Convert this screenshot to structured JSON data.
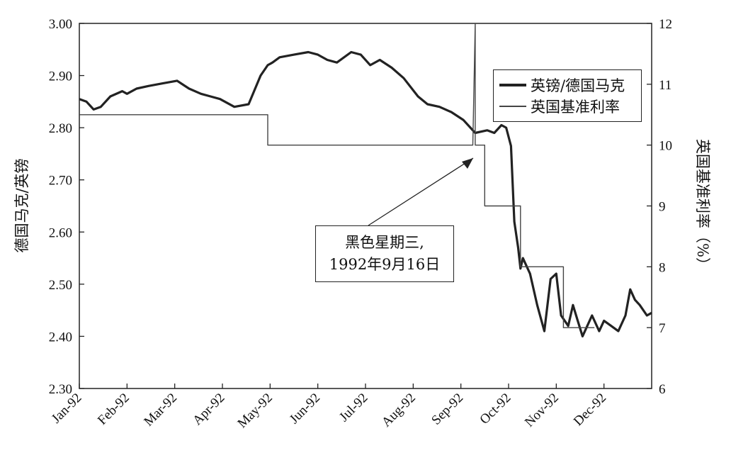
{
  "chart_data": {
    "type": "line",
    "ylabel_left": "德国马克/英镑",
    "ylabel_right": "英国基准利率（%）",
    "ylim_left": [
      2.3,
      3.0
    ],
    "ylim_right": [
      6,
      12
    ],
    "yticks_left": [
      "3.00",
      "2.90",
      "2.80",
      "2.70",
      "2.60",
      "2.50",
      "2.40",
      "2.30"
    ],
    "yticks_right": [
      "12",
      "11",
      "10",
      "9",
      "8",
      "7",
      "6"
    ],
    "xticks": [
      "Jan-92",
      "Feb-92",
      "Mar-92",
      "Apr-92",
      "May-92",
      "Jun-92",
      "Jul-92",
      "Aug-92",
      "Sep-92",
      "Oct-92",
      "Nov-92",
      "Dec-92"
    ],
    "legend_position": "top-right",
    "series": [
      {
        "name": "英镑/德国马克",
        "axis": "left",
        "color": "#222222",
        "x": [
          0.0,
          0.15,
          0.3,
          0.45,
          0.65,
          0.9,
          1.0,
          1.2,
          1.45,
          1.75,
          2.05,
          2.3,
          2.55,
          2.75,
          2.95,
          3.25,
          3.55,
          3.8,
          3.95,
          4.05,
          4.2,
          4.5,
          4.8,
          5.0,
          5.2,
          5.4,
          5.7,
          5.9,
          6.1,
          6.3,
          6.55,
          6.8,
          7.1,
          7.3,
          7.55,
          7.8,
          8.05,
          8.3,
          8.55,
          8.7,
          8.85,
          8.95,
          9.05,
          9.12,
          9.2,
          9.25,
          9.3,
          9.45,
          9.6,
          9.75,
          9.88,
          10.0,
          10.1,
          10.25,
          10.35,
          10.45,
          10.55,
          10.65,
          10.75,
          10.9,
          11.0,
          11.15,
          11.3,
          11.45,
          11.55,
          11.65,
          11.75,
          11.9,
          12.0
        ],
        "values": [
          2.855,
          2.85,
          2.835,
          2.84,
          2.86,
          2.87,
          2.865,
          2.875,
          2.88,
          2.885,
          2.89,
          2.875,
          2.865,
          2.86,
          2.855,
          2.84,
          2.845,
          2.9,
          2.92,
          2.925,
          2.935,
          2.94,
          2.945,
          2.94,
          2.93,
          2.925,
          2.945,
          2.94,
          2.92,
          2.93,
          2.915,
          2.895,
          2.86,
          2.845,
          2.84,
          2.83,
          2.815,
          2.79,
          2.795,
          2.79,
          2.805,
          2.8,
          2.765,
          2.62,
          2.57,
          2.53,
          2.55,
          2.52,
          2.46,
          2.41,
          2.51,
          2.52,
          2.44,
          2.42,
          2.46,
          2.43,
          2.4,
          2.42,
          2.44,
          2.41,
          2.43,
          2.42,
          2.41,
          2.44,
          2.49,
          2.47,
          2.46,
          2.44,
          2.445
        ]
      },
      {
        "name": "英国基准利率",
        "axis": "right",
        "color": "#444444",
        "x": [
          0.0,
          3.95,
          3.95,
          8.25,
          8.25,
          8.3,
          8.3,
          8.38,
          8.38,
          8.5,
          8.5,
          9.25,
          9.25,
          10.15,
          10.15,
          10.2,
          10.2,
          10.8
        ],
        "values": [
          10.5,
          10.5,
          10.0,
          10.0,
          10.0,
          12.0,
          10.0,
          10.0,
          10.0,
          10.0,
          9.0,
          9.0,
          8.0,
          8.0,
          7.0,
          7.0,
          7.0,
          7.0
        ]
      }
    ],
    "annotation": {
      "line1": "黑色星期三,",
      "line2": "1992年9月16日"
    }
  }
}
